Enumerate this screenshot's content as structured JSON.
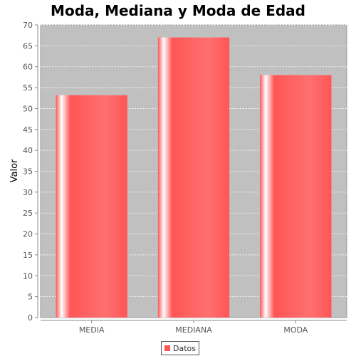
{
  "chart_data": {
    "type": "bar",
    "title": "Moda, Mediana y Moda de Edad",
    "xlabel": "",
    "ylabel": "Valor",
    "categories": [
      "MEDIA",
      "MEDIANA",
      "MODA"
    ],
    "series": [
      {
        "name": "Datos",
        "values": [
          53.2,
          67,
          58
        ],
        "color": "#ff5555"
      }
    ],
    "ylim": [
      0,
      70
    ],
    "yticks": [
      0,
      5,
      10,
      15,
      20,
      25,
      30,
      35,
      40,
      45,
      50,
      55,
      60,
      65,
      70
    ],
    "grid": true,
    "legend_position": "bottom",
    "plot_background": "#c0c0c0"
  }
}
